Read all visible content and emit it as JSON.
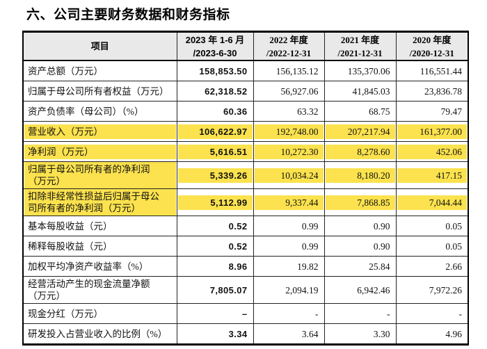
{
  "title": "六、公司主要财务数据和财务指标",
  "colors": {
    "highlight": "#fbe24e",
    "header_bg": "#e9e9e9",
    "border": "#000000"
  },
  "table": {
    "columns": [
      {
        "line1": "项目"
      },
      {
        "line1": "2023 年 1-6 月",
        "line2": "/2023-6-30"
      },
      {
        "line1": "2022 年度",
        "line2": "/2022-12-31"
      },
      {
        "line1": "2021 年度",
        "line2": "/2021-12-31"
      },
      {
        "line1": "2020 年度",
        "line2": "/2020-12-31"
      }
    ],
    "rows": [
      {
        "label": "资产总额（万元）",
        "values": [
          "158,853.50",
          "156,135.12",
          "135,370.06",
          "116,551.44"
        ],
        "highlight": false
      },
      {
        "label": "归属于母公司所有者权益（万元）",
        "values": [
          "62,318.52",
          "56,927.06",
          "41,845.03",
          "23,836.78"
        ],
        "highlight": false
      },
      {
        "label": "资产负债率（母公司）（%）",
        "values": [
          "60.36",
          "63.32",
          "68.75",
          "79.47"
        ],
        "highlight": false
      },
      {
        "label": "营业收入（万元）",
        "values": [
          "106,622.97",
          "192,748.00",
          "207,217.94",
          "161,377.00"
        ],
        "highlight": true
      },
      {
        "label": "净利润（万元）",
        "values": [
          "5,616.51",
          "10,272.30",
          "8,278.60",
          "452.06"
        ],
        "highlight": true
      },
      {
        "label": "归属于母公司所有者的净利润（万元）",
        "values": [
          "5,339.26",
          "10,034.24",
          "8,180.20",
          "417.15"
        ],
        "highlight": true
      },
      {
        "label": "扣除非经常性损益后归属于母公司所有者的净利润（万元）",
        "values": [
          "5,112.99",
          "9,337.44",
          "7,868.85",
          "7,044.44"
        ],
        "highlight": true
      },
      {
        "label": "基本每股收益（元）",
        "values": [
          "0.52",
          "0.99",
          "0.90",
          "0.05"
        ],
        "highlight": false
      },
      {
        "label": "稀释每股收益（元）",
        "values": [
          "0.52",
          "0.99",
          "0.90",
          "0.05"
        ],
        "highlight": false
      },
      {
        "label": "加权平均净资产收益率（%）",
        "values": [
          "8.96",
          "19.82",
          "25.84",
          "2.66"
        ],
        "highlight": false
      },
      {
        "label": "经营活动产生的现金流量净额（万元）",
        "values": [
          "7,805.07",
          "2,094.19",
          "6,942.46",
          "7,972.26"
        ],
        "highlight": false
      },
      {
        "label": "现金分红（万元）",
        "values": [
          "–",
          "-",
          "-",
          "-"
        ],
        "highlight": false
      },
      {
        "label": "研发投入占营业收入的比例（%）",
        "values": [
          "3.34",
          "3.64",
          "3.30",
          "4.96"
        ],
        "highlight": false
      }
    ]
  }
}
